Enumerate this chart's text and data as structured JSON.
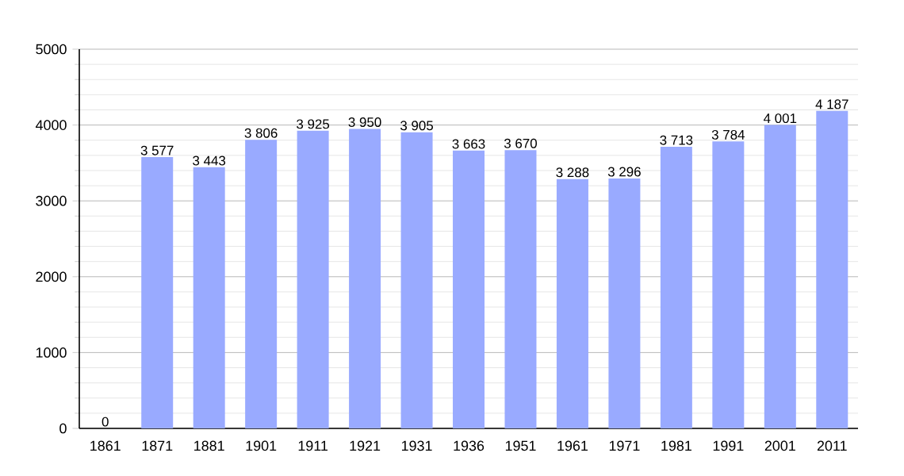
{
  "chart_data": {
    "type": "bar",
    "categories": [
      "1861",
      "1871",
      "1881",
      "1901",
      "1911",
      "1921",
      "1931",
      "1936",
      "1951",
      "1961",
      "1971",
      "1981",
      "1991",
      "2001",
      "2011"
    ],
    "values": [
      0,
      3577,
      3443,
      3806,
      3925,
      3950,
      3905,
      3663,
      3670,
      3288,
      3296,
      3713,
      3784,
      4001,
      4187
    ],
    "value_labels": [
      "0",
      "3 577",
      "3 443",
      "3 806",
      "3 925",
      "3 950",
      "3 905",
      "3 663",
      "3 670",
      "3 288",
      "3 296",
      "3 713",
      "3 784",
      "4 001",
      "4 187"
    ],
    "color": "#99aaff",
    "ylim": [
      0,
      5000
    ],
    "yticks": [
      0,
      1000,
      2000,
      3000,
      4000,
      5000
    ],
    "grid": "y"
  }
}
